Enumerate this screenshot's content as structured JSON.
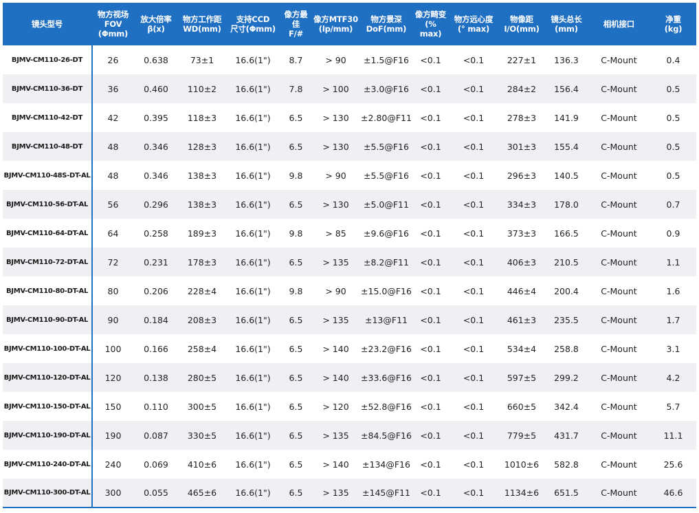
{
  "table": {
    "header_color": "#1f6fc2",
    "stripe_color": "#eef0f3",
    "columns": [
      "镜头型号",
      "物方视场\nFOV\n(Φmm)",
      "放大倍率\nβ(x)",
      "物方工作距\nWD(mm)",
      "支持CCD\n尺寸(Φmm)",
      "像方最佳\nF/#",
      "像方MTF30\n(lp/mm)",
      "物方景深\nDoF(mm)",
      "像方畸变\n(% max)",
      "物方远心度\n(° max)",
      "物像距\nI/O(mm)",
      "镜头总长\n(mm)",
      "相机接口",
      "净重\n(kg)"
    ],
    "rows": [
      [
        "BJMV-CM110-26-DT",
        "26",
        "0.638",
        "73±1",
        "16.6(1\")",
        "8.7",
        "> 90",
        "±1.5@F16",
        "<0.1",
        "<0.1",
        "227±1",
        "136.3",
        "C-Mount",
        "0.4"
      ],
      [
        "BJMV-CM110-36-DT",
        "36",
        "0.460",
        "110±2",
        "16.6(1\")",
        "7.8",
        "> 100",
        "±3.0@F16",
        "<0.1",
        "<0.1",
        "284±2",
        "156.4",
        "C-Mount",
        "0.5"
      ],
      [
        "BJMV-CM110-42-DT",
        "42",
        "0.395",
        "118±3",
        "16.6(1\")",
        "6.5",
        "> 130",
        "±2.80@F11",
        "<0.1",
        "<0.1",
        "278±3",
        "141.9",
        "C-Mount",
        "0.5"
      ],
      [
        "BJMV-CM110-48-DT",
        "48",
        "0.346",
        "128±3",
        "16.6(1\")",
        "6.5",
        "> 130",
        "±5.5@F16",
        "<0.1",
        "<0.1",
        "301±3",
        "155.4",
        "C-Mount",
        "0.5"
      ],
      [
        "BJMV-CM110-48S-DT-AL",
        "48",
        "0.346",
        "138±3",
        "16.6(1\")",
        "9.8",
        "> 90",
        "±5.5@F16",
        "<0.1",
        "<0.1",
        "296±3",
        "140.5",
        "C-Mount",
        "0.5"
      ],
      [
        "BJMV-CM110-56-DT-AL",
        "56",
        "0.296",
        "138±3",
        "16.6(1\")",
        "6.5",
        "> 130",
        "±5.0@F11",
        "<0.1",
        "<0.1",
        "334±3",
        "178.0",
        "C-Mount",
        "0.7"
      ],
      [
        "BJMV-CM110-64-DT-AL",
        "64",
        "0.258",
        "189±3",
        "16.6(1\")",
        "9.8",
        "> 85",
        "±9.6@F16",
        "<0.1",
        "<0.1",
        "373±3",
        "166.5",
        "C-Mount",
        "0.9"
      ],
      [
        "BJMV-CM110-72-DT-AL",
        "72",
        "0.231",
        "178±3",
        "16.6(1\")",
        "6.5",
        "> 135",
        "±8.2@F11",
        "<0.1",
        "<0.1",
        "406±3",
        "210.5",
        "C-Mount",
        "1.1"
      ],
      [
        "BJMV-CM110-80-DT-AL",
        "80",
        "0.206",
        "228±4",
        "16.6(1\")",
        "9.8",
        "> 90",
        "±15.0@F16",
        "<0.1",
        "<0.1",
        "446±4",
        "200.4",
        "C-Mount",
        "1.6"
      ],
      [
        "BJMV-CM110-90-DT-AL",
        "90",
        "0.184",
        "208±3",
        "16.6(1\")",
        "6.5",
        "> 135",
        "±13@F11",
        "<0.1",
        "<0.1",
        "461±3",
        "235.5",
        "C-Mount",
        "1.7"
      ],
      [
        "BJMV-CM110-100-DT-AL",
        "100",
        "0.166",
        "258±4",
        "16.6(1\")",
        "6.5",
        "> 140",
        "±23.2@F16",
        "<0.1",
        "<0.1",
        "534±4",
        "258.8",
        "C-Mount",
        "3.1"
      ],
      [
        "BJMV-CM110-120-DT-AL",
        "120",
        "0.138",
        "280±5",
        "16.6(1\")",
        "6.5",
        "> 140",
        "±33.6@F16",
        "<0.1",
        "<0.1",
        "597±5",
        "299.2",
        "C-Mount",
        "4.2"
      ],
      [
        "BJMV-CM110-150-DT-AL",
        "150",
        "0.110",
        "300±5",
        "16.6(1\")",
        "6.5",
        "> 120",
        "±52.8@F16",
        "<0.1",
        "<0.1",
        "660±5",
        "342.4",
        "C-Mount",
        "5.7"
      ],
      [
        "BJMV-CM110-190-DT-AL",
        "190",
        "0.087",
        "330±5",
        "16.6(1\")",
        "6.5",
        "> 135",
        "±84.5@F16",
        "<0.1",
        "<0.1",
        "779±5",
        "431.7",
        "C-Mount",
        "11.1"
      ],
      [
        "BJMV-CM110-240-DT-AL",
        "240",
        "0.069",
        "410±6",
        "16.6(1\")",
        "6.5",
        "> 140",
        "±134@F16",
        "<0.1",
        "<0.1",
        "1010±6",
        "582.8",
        "C-Mount",
        "25.6"
      ],
      [
        "BJMV-CM110-300-DT-AL",
        "300",
        "0.055",
        "465±6",
        "16.6(1\")",
        "6.5",
        "> 135",
        "±145@F11",
        "<0.1",
        "<0.1",
        "1134±6",
        "651.5",
        "C-Mount",
        "46.6"
      ]
    ]
  }
}
